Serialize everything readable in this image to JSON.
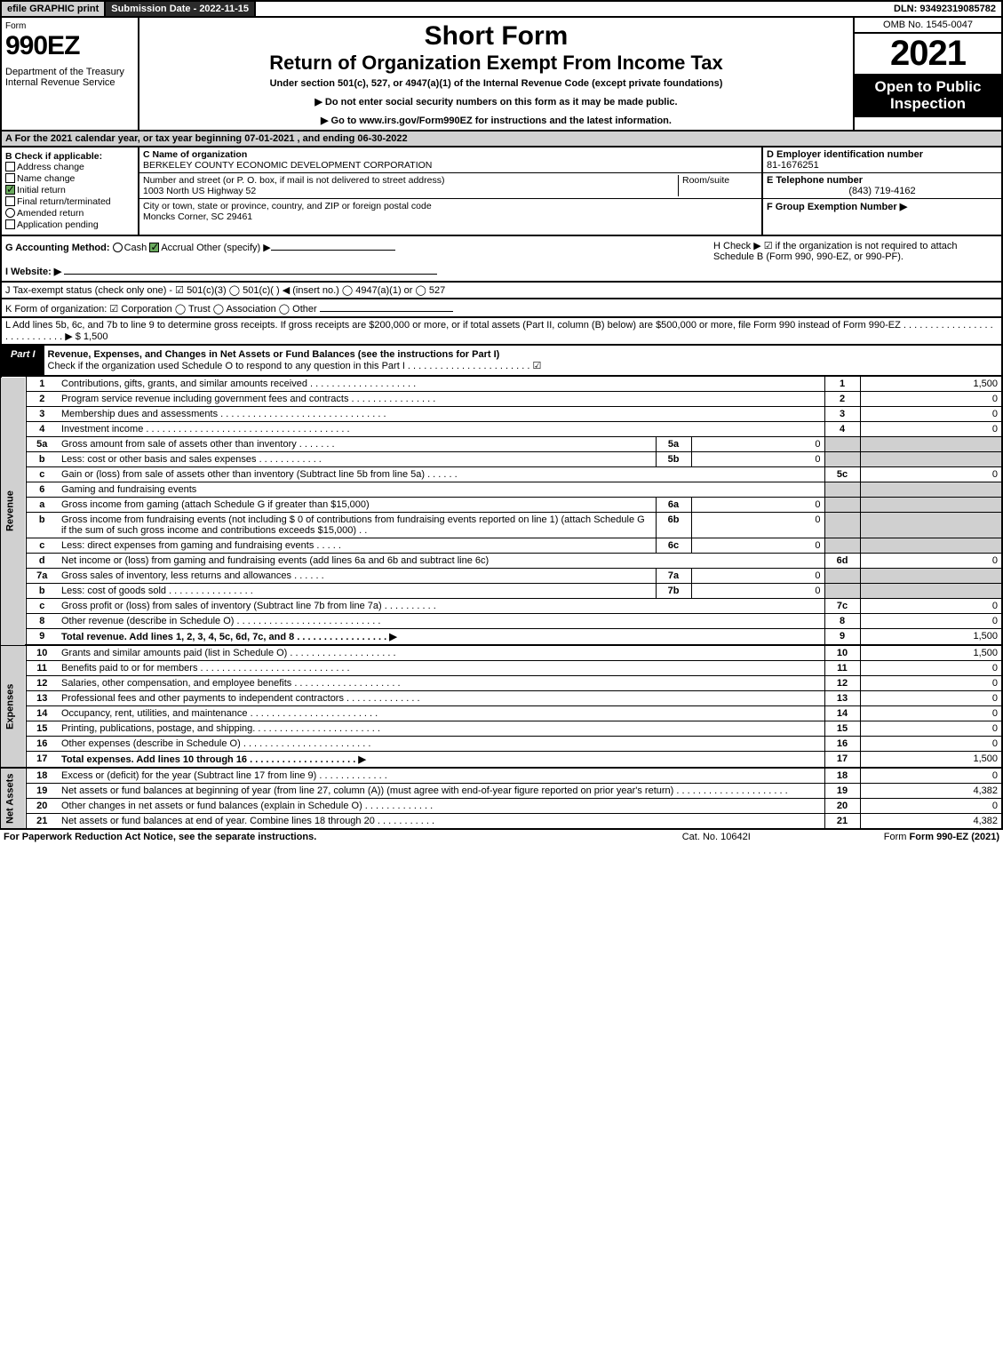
{
  "top": {
    "efile": "efile GRAPHIC print",
    "submission": "Submission Date - 2022-11-15",
    "dln": "DLN: 93492319085782"
  },
  "header": {
    "form": "Form",
    "formNum": "990EZ",
    "dept": "Department of the Treasury\nInternal Revenue Service",
    "title1": "Short Form",
    "title2": "Return of Organization Exempt From Income Tax",
    "subtitle": "Under section 501(c), 527, or 4947(a)(1) of the Internal Revenue Code (except private foundations)",
    "note1": "▶ Do not enter social security numbers on this form as it may be made public.",
    "note2": "▶ Go to www.irs.gov/Form990EZ for instructions and the latest information.",
    "omb": "OMB No. 1545-0047",
    "year": "2021",
    "inspection": "Open to Public Inspection"
  },
  "a": "A  For the 2021 calendar year, or tax year beginning 07-01-2021 , and ending 06-30-2022",
  "b": {
    "label": "B  Check if applicable:",
    "opts": [
      {
        "txt": "Address change",
        "checked": false,
        "shape": "box"
      },
      {
        "txt": "Name change",
        "checked": false,
        "shape": "box"
      },
      {
        "txt": "Initial return",
        "checked": true,
        "shape": "box"
      },
      {
        "txt": "Final return/terminated",
        "checked": false,
        "shape": "box"
      },
      {
        "txt": "Amended return",
        "checked": false,
        "shape": "circle"
      },
      {
        "txt": "Application pending",
        "checked": false,
        "shape": "box"
      }
    ]
  },
  "c": {
    "nameLbl": "C Name of organization",
    "name": "BERKELEY COUNTY ECONOMIC DEVELOPMENT CORPORATION",
    "addrLbl": "Number and street (or P. O. box, if mail is not delivered to street address)",
    "roomLbl": "Room/suite",
    "addr": "1003 North US Highway 52",
    "cityLbl": "City or town, state or province, country, and ZIP or foreign postal code",
    "city": "Moncks Corner, SC  29461"
  },
  "d": {
    "label": "D Employer identification number",
    "val": "81-1676251"
  },
  "e": {
    "label": "E Telephone number",
    "val": "(843) 719-4162"
  },
  "f": {
    "label": "F Group Exemption Number  ▶"
  },
  "g": "G Accounting Method:",
  "gOpts": [
    "Cash",
    "Accrual",
    "Other (specify) ▶"
  ],
  "h": "H  Check ▶ ☑ if the organization is not required to attach Schedule B (Form 990, 990-EZ, or 990-PF).",
  "i": "I Website: ▶",
  "j": "J Tax-exempt status (check only one) - ☑ 501(c)(3)  ◯ 501(c)(  ) ◀ (insert no.)  ◯ 4947(a)(1) or  ◯ 527",
  "k": "K Form of organization: ☑ Corporation  ◯ Trust  ◯ Association  ◯ Other",
  "l": "L Add lines 5b, 6c, and 7b to line 9 to determine gross receipts. If gross receipts are $200,000 or more, or if total assets (Part II, column (B) below) are $500,000 or more, file Form 990 instead of Form 990-EZ  .  .  .  .  .  .  .  .  .  .  .  .  .  .  .  .  .  .  .  .  .  .  .  .  .  .  .  .  ▶ $ 1,500",
  "part1": {
    "label": "Part I",
    "title": "Revenue, Expenses, and Changes in Net Assets or Fund Balances (see the instructions for Part I)",
    "check": "Check if the organization used Schedule O to respond to any question in this Part I  .  .  .  .  .  .  .  .  .  .  .  .  .  .  .  .  .  .  .  .  .  .  .  ☑"
  },
  "sides": {
    "rev": "Revenue",
    "exp": "Expenses",
    "net": "Net Assets"
  },
  "rows": [
    {
      "ln": "1",
      "txt": "Contributions, gifts, grants, and similar amounts received  .  .  .  .  .  .  .  .  .  .  .  .  .  .  .  .  .  .  .  .",
      "num": "1",
      "val": "1,500"
    },
    {
      "ln": "2",
      "txt": "Program service revenue including government fees and contracts  .  .  .  .  .  .  .  .  .  .  .  .  .  .  .  .",
      "num": "2",
      "val": "0"
    },
    {
      "ln": "3",
      "txt": "Membership dues and assessments  .  .  .  .  .  .  .  .  .  .  .  .  .  .  .  .  .  .  .  .  .  .  .  .  .  .  .  .  .  .  .",
      "num": "3",
      "val": "0"
    },
    {
      "ln": "4",
      "txt": "Investment income  .  .  .  .  .  .  .  .  .  .  .  .  .  .  .  .  .  .  .  .  .  .  .  .  .  .  .  .  .  .  .  .  .  .  .  .  .  .",
      "num": "4",
      "val": "0"
    },
    {
      "ln": "5a",
      "txt": "Gross amount from sale of assets other than inventory  .  .  .  .  .  .  .",
      "mid": "5a",
      "midv": "0",
      "shade": true
    },
    {
      "ln": "b",
      "txt": "Less: cost or other basis and sales expenses  .  .  .  .  .  .  .  .  .  .  .  .",
      "mid": "5b",
      "midv": "0",
      "shade": true
    },
    {
      "ln": "c",
      "txt": "Gain or (loss) from sale of assets other than inventory (Subtract line 5b from line 5a)  .  .  .  .  .  .",
      "num": "5c",
      "val": "0"
    },
    {
      "ln": "6",
      "txt": "Gaming and fundraising events",
      "shade": true
    },
    {
      "ln": "a",
      "txt": "Gross income from gaming (attach Schedule G if greater than $15,000)",
      "mid": "6a",
      "midv": "0",
      "shade": true
    },
    {
      "ln": "b",
      "txt": "Gross income from fundraising events (not including $ 0 of contributions from fundraising events reported on line 1) (attach Schedule G if the sum of such gross income and contributions exceeds $15,000)   .  .",
      "mid": "6b",
      "midv": "0",
      "shade": true
    },
    {
      "ln": "c",
      "txt": "Less: direct expenses from gaming and fundraising events  .  .  .  .  .",
      "mid": "6c",
      "midv": "0",
      "shade": true
    },
    {
      "ln": "d",
      "txt": "Net income or (loss) from gaming and fundraising events (add lines 6a and 6b and subtract line 6c)",
      "num": "6d",
      "val": "0"
    },
    {
      "ln": "7a",
      "txt": "Gross sales of inventory, less returns and allowances  .  .  .  .  .  .",
      "mid": "7a",
      "midv": "0",
      "shade": true
    },
    {
      "ln": "b",
      "txt": "Less: cost of goods sold   .  .  .  .  .  .  .  .  .  .  .  .  .  .  .  .",
      "mid": "7b",
      "midv": "0",
      "shade": true
    },
    {
      "ln": "c",
      "txt": "Gross profit or (loss) from sales of inventory (Subtract line 7b from line 7a)  .  .  .  .  .  .  .  .  .  .",
      "num": "7c",
      "val": "0"
    },
    {
      "ln": "8",
      "txt": "Other revenue (describe in Schedule O)  .  .  .  .  .  .  .  .  .  .  .  .  .  .  .  .  .  .  .  .  .  .  .  .  .  .  .",
      "num": "8",
      "val": "0"
    },
    {
      "ln": "9",
      "txt": "Total revenue. Add lines 1, 2, 3, 4, 5c, 6d, 7c, and 8  .  .  .  .  .  .  .  .  .  .  .  .  .  .  .  .  .  ▶",
      "num": "9",
      "val": "1,500",
      "bold": true,
      "thick": true
    },
    {
      "ln": "10",
      "txt": "Grants and similar amounts paid (list in Schedule O)  .  .  .  .  .  .  .  .  .  .  .  .  .  .  .  .  .  .  .  .",
      "num": "10",
      "val": "1,500"
    },
    {
      "ln": "11",
      "txt": "Benefits paid to or for members   .  .  .  .  .  .  .  .  .  .  .  .  .  .  .  .  .  .  .  .  .  .  .  .  .  .  .  .",
      "num": "11",
      "val": "0"
    },
    {
      "ln": "12",
      "txt": "Salaries, other compensation, and employee benefits  .  .  .  .  .  .  .  .  .  .  .  .  .  .  .  .  .  .  .  .",
      "num": "12",
      "val": "0"
    },
    {
      "ln": "13",
      "txt": "Professional fees and other payments to independent contractors  .  .  .  .  .  .  .  .  .  .  .  .  .  .",
      "num": "13",
      "val": "0"
    },
    {
      "ln": "14",
      "txt": "Occupancy, rent, utilities, and maintenance  .  .  .  .  .  .  .  .  .  .  .  .  .  .  .  .  .  .  .  .  .  .  .  .",
      "num": "14",
      "val": "0"
    },
    {
      "ln": "15",
      "txt": "Printing, publications, postage, and shipping.  .  .  .  .  .  .  .  .  .  .  .  .  .  .  .  .  .  .  .  .  .  .  .",
      "num": "15",
      "val": "0"
    },
    {
      "ln": "16",
      "txt": "Other expenses (describe in Schedule O)   .  .  .  .  .  .  .  .  .  .  .  .  .  .  .  .  .  .  .  .  .  .  .  .",
      "num": "16",
      "val": "0"
    },
    {
      "ln": "17",
      "txt": "Total expenses. Add lines 10 through 16   .  .  .  .  .  .  .  .  .  .  .  .  .  .  .  .  .  .  .  .  ▶",
      "num": "17",
      "val": "1,500",
      "bold": true,
      "thick": true
    },
    {
      "ln": "18",
      "txt": "Excess or (deficit) for the year (Subtract line 17 from line 9)   .  .  .  .  .  .  .  .  .  .  .  .  .",
      "num": "18",
      "val": "0"
    },
    {
      "ln": "19",
      "txt": "Net assets or fund balances at beginning of year (from line 27, column (A)) (must agree with end-of-year figure reported on prior year's return)  .  .  .  .  .  .  .  .  .  .  .  .  .  .  .  .  .  .  .  .  .",
      "num": "19",
      "val": "4,382"
    },
    {
      "ln": "20",
      "txt": "Other changes in net assets or fund balances (explain in Schedule O)  .  .  .  .  .  .  .  .  .  .  .  .  .",
      "num": "20",
      "val": "0"
    },
    {
      "ln": "21",
      "txt": "Net assets or fund balances at end of year. Combine lines 18 through 20  .  .  .  .  .  .  .  .  .  .  .",
      "num": "21",
      "val": "4,382",
      "thick": true
    }
  ],
  "footer": {
    "f1": "For Paperwork Reduction Act Notice, see the separate instructions.",
    "f2": "Cat. No. 10642I",
    "f3": "Form 990-EZ (2021)"
  },
  "colors": {
    "shade": "#d0d0d0",
    "dark": "#2b2b2b",
    "check": "#6aaa5e"
  }
}
